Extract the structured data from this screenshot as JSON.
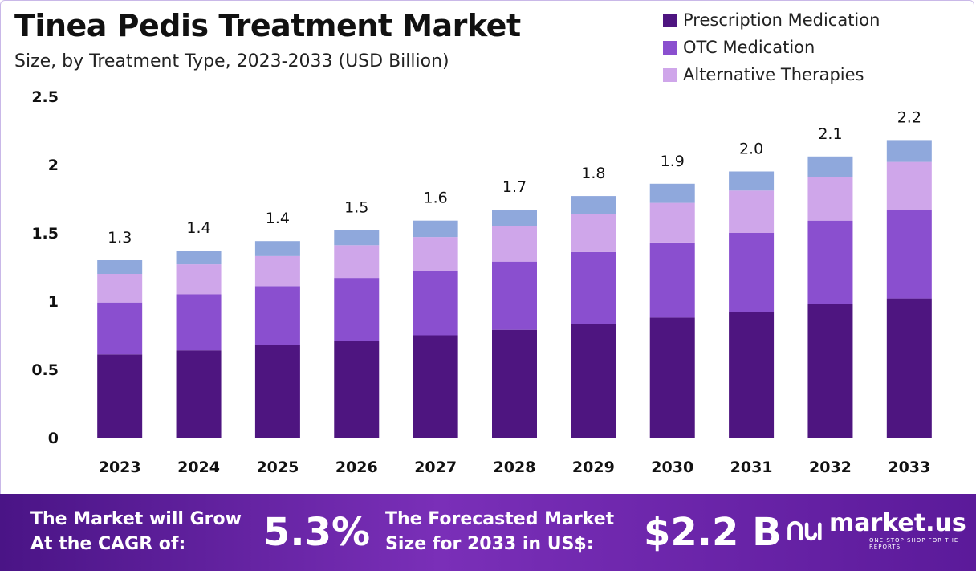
{
  "chart_data": {
    "type": "bar",
    "stacked": true,
    "title": "Tinea Pedis Treatment Market",
    "subtitle": "Size, by Treatment Type, 2023-2033 (USD Billion)",
    "categories": [
      "2023",
      "2024",
      "2025",
      "2026",
      "2027",
      "2028",
      "2029",
      "2030",
      "2031",
      "2032",
      "2033"
    ],
    "series": [
      {
        "name": "Prescription Medication",
        "color": "#4e1580",
        "values": [
          0.61,
          0.64,
          0.68,
          0.71,
          0.75,
          0.79,
          0.83,
          0.88,
          0.92,
          0.98,
          1.02
        ]
      },
      {
        "name": "OTC Medication",
        "color": "#8a4fcf",
        "values": [
          0.38,
          0.41,
          0.43,
          0.46,
          0.47,
          0.5,
          0.53,
          0.55,
          0.58,
          0.61,
          0.65
        ]
      },
      {
        "name": "Alternative Therapies",
        "color": "#cfa6ea",
        "values": [
          0.21,
          0.22,
          0.22,
          0.24,
          0.25,
          0.26,
          0.28,
          0.29,
          0.31,
          0.32,
          0.35
        ]
      },
      {
        "name": "",
        "color": "#8fa8dc",
        "values": [
          0.1,
          0.1,
          0.11,
          0.11,
          0.12,
          0.12,
          0.13,
          0.14,
          0.14,
          0.15,
          0.16
        ]
      }
    ],
    "totals": [
      "1.3",
      "1.4",
      "1.4",
      "1.5",
      "1.6",
      "1.7",
      "1.8",
      "1.9",
      "2.0",
      "2.1",
      "2.2"
    ],
    "yticks": [
      "0",
      "0.5",
      "1",
      "1.5",
      "2",
      "2.5"
    ],
    "ylim": [
      0,
      2.5
    ],
    "grid": false,
    "legend": "top-right"
  },
  "footer": {
    "cagr_label_1": "The Market will Grow",
    "cagr_label_2": "At the CAGR of:",
    "cagr_value": "5.3%",
    "forecast_label_1": "The Forecasted Market",
    "forecast_label_2": "Size for 2033 in US$:",
    "forecast_value": "$2.2 B",
    "logo_name": "market.us",
    "logo_tagline": "ONE STOP SHOP FOR THE REPORTS"
  }
}
